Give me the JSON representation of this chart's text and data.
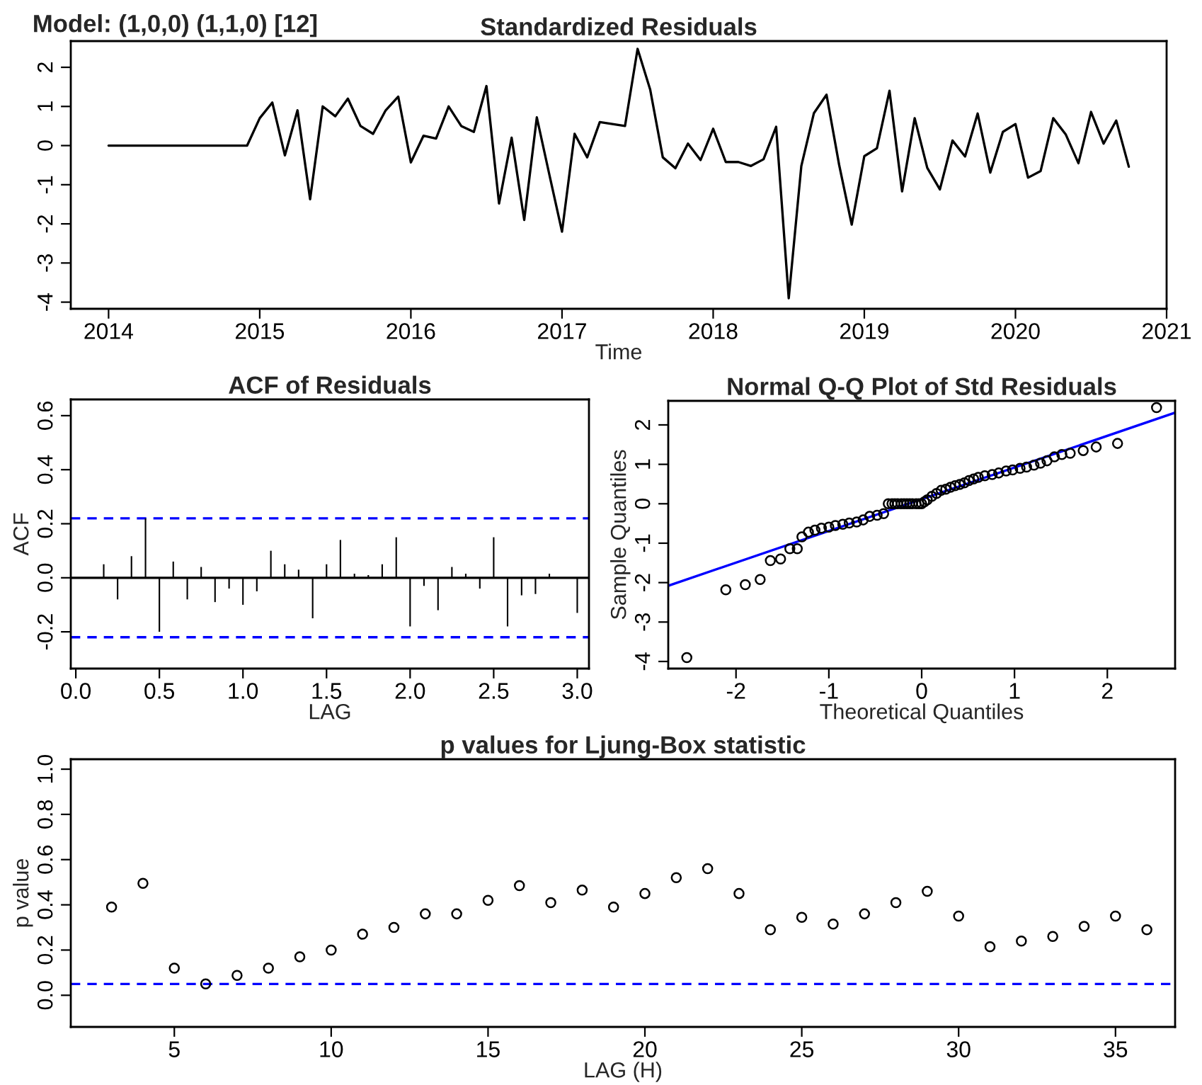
{
  "chart_data": [
    {
      "type": "line",
      "title": "Standardized Residuals",
      "annotations": [
        "Model: (1,0,0) (1,1,0) [12]"
      ],
      "xlabel": "Time",
      "x": [
        "2014-01",
        "2014-02",
        "2014-03",
        "2014-04",
        "2014-05",
        "2014-06",
        "2014-07",
        "2014-08",
        "2014-09",
        "2014-10",
        "2014-11",
        "2014-12",
        "2015-01",
        "2015-02",
        "2015-03",
        "2015-04",
        "2015-05",
        "2015-06",
        "2015-07",
        "2015-08",
        "2015-09",
        "2015-10",
        "2015-11",
        "2015-12",
        "2016-01",
        "2016-02",
        "2016-03",
        "2016-04",
        "2016-05",
        "2016-06",
        "2016-07",
        "2016-08",
        "2016-09",
        "2016-10",
        "2016-11",
        "2016-12",
        "2017-01",
        "2017-02",
        "2017-03",
        "2017-04",
        "2017-05",
        "2017-06",
        "2017-07",
        "2017-08",
        "2017-09",
        "2017-10",
        "2017-11",
        "2017-12",
        "2018-01",
        "2018-02",
        "2018-03",
        "2018-04",
        "2018-05",
        "2018-06",
        "2018-07",
        "2018-08",
        "2018-09",
        "2018-10",
        "2018-11",
        "2018-12",
        "2019-01",
        "2019-02",
        "2019-03",
        "2019-04",
        "2019-05",
        "2019-06",
        "2019-07",
        "2019-08",
        "2019-09",
        "2019-10",
        "2019-11",
        "2019-12",
        "2020-01",
        "2020-02",
        "2020-03",
        "2020-04",
        "2020-05",
        "2020-06",
        "2020-07",
        "2020-08",
        "2020-09",
        "2020-10"
      ],
      "series": [
        {
          "color": "#000000",
          "values": [
            0,
            0,
            0,
            0,
            0,
            0,
            0,
            0,
            0,
            0,
            0,
            0,
            0.7,
            1.1,
            -0.25,
            0.9,
            -1.37,
            1.0,
            0.75,
            1.2,
            0.5,
            0.3,
            0.9,
            1.25,
            -0.43,
            0.25,
            0.18,
            1.0,
            0.5,
            0.35,
            1.52,
            -1.48,
            0.2,
            -1.9,
            0.72,
            -0.75,
            -2.2,
            0.3,
            -0.3,
            0.6,
            0.55,
            0.5,
            2.47,
            1.43,
            -0.3,
            -0.58,
            0.05,
            -0.37,
            0.43,
            -0.42,
            -0.42,
            -0.52,
            -0.35,
            0.48,
            -3.9,
            -0.52,
            0.83,
            1.3,
            -0.49,
            -2.02,
            -0.27,
            -0.07,
            1.4,
            -1.17,
            0.7,
            -0.57,
            -1.12,
            0.13,
            -0.28,
            0.82,
            -0.69,
            0.35,
            0.55,
            -0.82,
            -0.65,
            0.7,
            0.28,
            -0.45,
            0.86,
            0.05,
            0.64,
            -0.54
          ]
        }
      ],
      "xlim": [
        "2013-10",
        "2021-01"
      ],
      "xticks": [
        "2014",
        "2015",
        "2016",
        "2017",
        "2018",
        "2019",
        "2020",
        "2021"
      ],
      "ylim": [
        -4.17,
        2.67
      ],
      "yticks": [
        -4,
        -3,
        -2,
        -1,
        0,
        1,
        2
      ],
      "marker": "none",
      "line_style": "solid",
      "grid": false,
      "legend": false
    },
    {
      "type": "bar",
      "title": "ACF of Residuals",
      "xlabel": "LAG",
      "ylabel": "ACF",
      "x": [
        0.083,
        0.167,
        0.25,
        0.333,
        0.417,
        0.5,
        0.583,
        0.667,
        0.75,
        0.833,
        0.917,
        1.0,
        1.083,
        1.167,
        1.25,
        1.333,
        1.417,
        1.5,
        1.583,
        1.667,
        1.75,
        1.833,
        1.917,
        2.0,
        2.083,
        2.167,
        2.25,
        2.333,
        2.417,
        2.5,
        2.583,
        2.667,
        2.75,
        2.833,
        2.917,
        3.0
      ],
      "series": [
        {
          "color": "#000000",
          "values": [
            0,
            0.05,
            -0.08,
            0.08,
            0.22,
            -0.2,
            0.06,
            -0.08,
            0.04,
            -0.09,
            -0.04,
            -0.1,
            -0.05,
            0.1,
            0.05,
            0.03,
            -0.15,
            0.05,
            0.14,
            0.015,
            0.01,
            0.05,
            0.15,
            -0.18,
            -0.03,
            -0.12,
            0.04,
            0.015,
            -0.04,
            0.15,
            -0.18,
            -0.065,
            -0.06,
            0.015,
            0,
            -0.13
          ]
        }
      ],
      "xlim": [
        -0.03,
        3.07
      ],
      "xticks": [
        {
          "value": 0,
          "label": "0.0"
        },
        {
          "value": 0.5,
          "label": "0.5"
        },
        {
          "value": 1,
          "label": "1.0"
        },
        {
          "value": 1.5,
          "label": "1.5"
        },
        {
          "value": 2,
          "label": "2.0"
        },
        {
          "value": 2.5,
          "label": "2.5"
        },
        {
          "value": 3,
          "label": "3.0"
        }
      ],
      "ylim": [
        -0.336,
        0.66
      ],
      "yticks": [
        {
          "value": -0.2,
          "label": "-0.2"
        },
        {
          "value": 0,
          "label": "0.0"
        },
        {
          "value": 0.2,
          "label": "0.2"
        },
        {
          "value": 0.4,
          "label": "0.4"
        },
        {
          "value": 0.6,
          "label": "0.6"
        }
      ],
      "ref_lines": [
        {
          "axis": "y",
          "value": 0.22,
          "color": "#0000ff",
          "line_style": "dashed"
        },
        {
          "axis": "y",
          "value": -0.22,
          "color": "#0000ff",
          "line_style": "dashed"
        },
        {
          "axis": "y",
          "value": 0,
          "color": "#000000",
          "line_style": "solid"
        }
      ],
      "grid": false,
      "legend": false
    },
    {
      "type": "scatter",
      "title": "Normal Q-Q Plot of Std Residuals",
      "xlabel": "Theoretical Quantiles",
      "ylabel": "Sample Quantiles",
      "series": [
        {
          "color": "#000000",
          "marker": "circle",
          "x": [
            -2.53,
            -2.11,
            -1.9,
            -1.74,
            -1.63,
            -1.52,
            -1.42,
            -1.34,
            -1.29,
            -1.22,
            -1.15,
            -1.08,
            -1.0,
            -0.93,
            -0.85,
            -0.78,
            -0.7,
            -0.63,
            -0.56,
            -0.48,
            -0.41,
            -0.36,
            -0.32,
            -0.29,
            -0.26,
            -0.22,
            -0.19,
            -0.16,
            -0.13,
            -0.1,
            -0.06,
            -0.03,
            0.0,
            0.03,
            0.06,
            0.11,
            0.16,
            0.21,
            0.26,
            0.31,
            0.36,
            0.41,
            0.46,
            0.51,
            0.56,
            0.61,
            0.68,
            0.76,
            0.83,
            0.91,
            0.98,
            1.06,
            1.13,
            1.21,
            1.28,
            1.35,
            1.43,
            1.51,
            1.6,
            1.74,
            1.88,
            2.11,
            2.53
          ],
          "values": [
            -3.9,
            -2.18,
            -2.05,
            -1.92,
            -1.44,
            -1.4,
            -1.14,
            -1.14,
            -0.84,
            -0.72,
            -0.67,
            -0.62,
            -0.59,
            -0.55,
            -0.52,
            -0.49,
            -0.46,
            -0.41,
            -0.32,
            -0.29,
            -0.25,
            0,
            0,
            0,
            0,
            0,
            0,
            0,
            0,
            0,
            0,
            0,
            0,
            0.05,
            0.1,
            0.19,
            0.26,
            0.34,
            0.37,
            0.42,
            0.46,
            0.49,
            0.53,
            0.59,
            0.63,
            0.67,
            0.71,
            0.74,
            0.78,
            0.83,
            0.86,
            0.9,
            0.93,
            0.98,
            1.03,
            1.09,
            1.19,
            1.25,
            1.28,
            1.35,
            1.44,
            1.53,
            2.44
          ]
        },
        {
          "type": "line",
          "color": "#0000ff",
          "marker": "none",
          "x": [
            -2.73,
            2.73
          ],
          "values": [
            -2.08,
            2.31
          ]
        }
      ],
      "xlim": [
        -2.73,
        2.73
      ],
      "xticks": [
        -2,
        -1,
        0,
        1,
        2
      ],
      "ylim": [
        -4.18,
        2.61
      ],
      "yticks": [
        -4,
        -3,
        -2,
        -1,
        0,
        1,
        2
      ],
      "grid": false,
      "legend": false
    },
    {
      "type": "scatter",
      "title": "p values for Ljung-Box statistic",
      "xlabel": "LAG (H)",
      "ylabel": "p value",
      "marker": "circle",
      "x": [
        3,
        4,
        5,
        6,
        7,
        8,
        9,
        10,
        11,
        12,
        13,
        14,
        15,
        16,
        17,
        18,
        19,
        20,
        21,
        22,
        23,
        24,
        25,
        26,
        27,
        28,
        29,
        30,
        31,
        32,
        33,
        34,
        35,
        36
      ],
      "series": [
        {
          "color": "#000000",
          "values": [
            0.39,
            0.495,
            0.12,
            0.05,
            0.088,
            0.12,
            0.17,
            0.2,
            0.27,
            0.3,
            0.36,
            0.36,
            0.42,
            0.485,
            0.41,
            0.465,
            0.39,
            0.45,
            0.52,
            0.56,
            0.45,
            0.29,
            0.345,
            0.315,
            0.36,
            0.41,
            0.46,
            0.35,
            0.215,
            0.24,
            0.26,
            0.305,
            0.35,
            0.29
          ]
        }
      ],
      "xlim": [
        1.7,
        36.9
      ],
      "xticks": [
        5,
        10,
        15,
        20,
        25,
        30,
        35
      ],
      "ylim": [
        -0.14,
        1.044
      ],
      "yticks": [
        {
          "value": 0,
          "label": "0.0"
        },
        {
          "value": 0.2,
          "label": "0.2"
        },
        {
          "value": 0.4,
          "label": "0.4"
        },
        {
          "value": 0.6,
          "label": "0.6"
        },
        {
          "value": 0.8,
          "label": "0.8"
        },
        {
          "value": 1,
          "label": "1.0"
        }
      ],
      "ref_lines": [
        {
          "axis": "y",
          "value": 0.05,
          "color": "#0000ff",
          "line_style": "dashed"
        }
      ],
      "grid": false,
      "legend": false
    }
  ]
}
